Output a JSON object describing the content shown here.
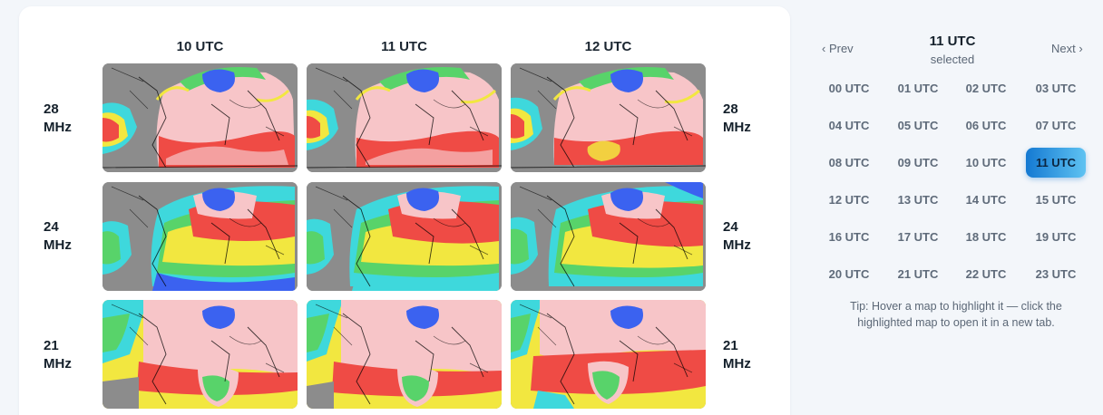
{
  "grid": {
    "columns": [
      "10 UTC",
      "11 UTC",
      "12 UTC"
    ],
    "rows": [
      {
        "label_left": "28",
        "unit": "MHz"
      },
      {
        "label_left": "24",
        "unit": "MHz"
      },
      {
        "label_left": "21",
        "unit": "MHz"
      }
    ]
  },
  "nav": {
    "prev": "‹ Prev",
    "next": "Next ›",
    "selected_hour": "11 UTC",
    "selected_caption": "selected"
  },
  "hours": [
    "00 UTC",
    "01 UTC",
    "02 UTC",
    "03 UTC",
    "04 UTC",
    "05 UTC",
    "06 UTC",
    "07 UTC",
    "08 UTC",
    "09 UTC",
    "10 UTC",
    "11 UTC",
    "12 UTC",
    "13 UTC",
    "14 UTC",
    "15 UTC",
    "16 UTC",
    "17 UTC",
    "18 UTC",
    "19 UTC",
    "20 UTC",
    "21 UTC",
    "22 UTC",
    "23 UTC"
  ],
  "active_hour_index": 11,
  "tip": "Tip: Hover a map to highlight it — click the highlighted map to open it in a new tab.",
  "colors": {
    "accent": "#1479d2",
    "map_land_gray": "#8c8c8c",
    "map_pink": "#f7c5c8",
    "map_red": "#ef4b45",
    "map_yellow": "#f2e740",
    "map_green": "#58d36a",
    "map_cyan": "#3ed8dc",
    "map_blue": "#3b62f0"
  }
}
